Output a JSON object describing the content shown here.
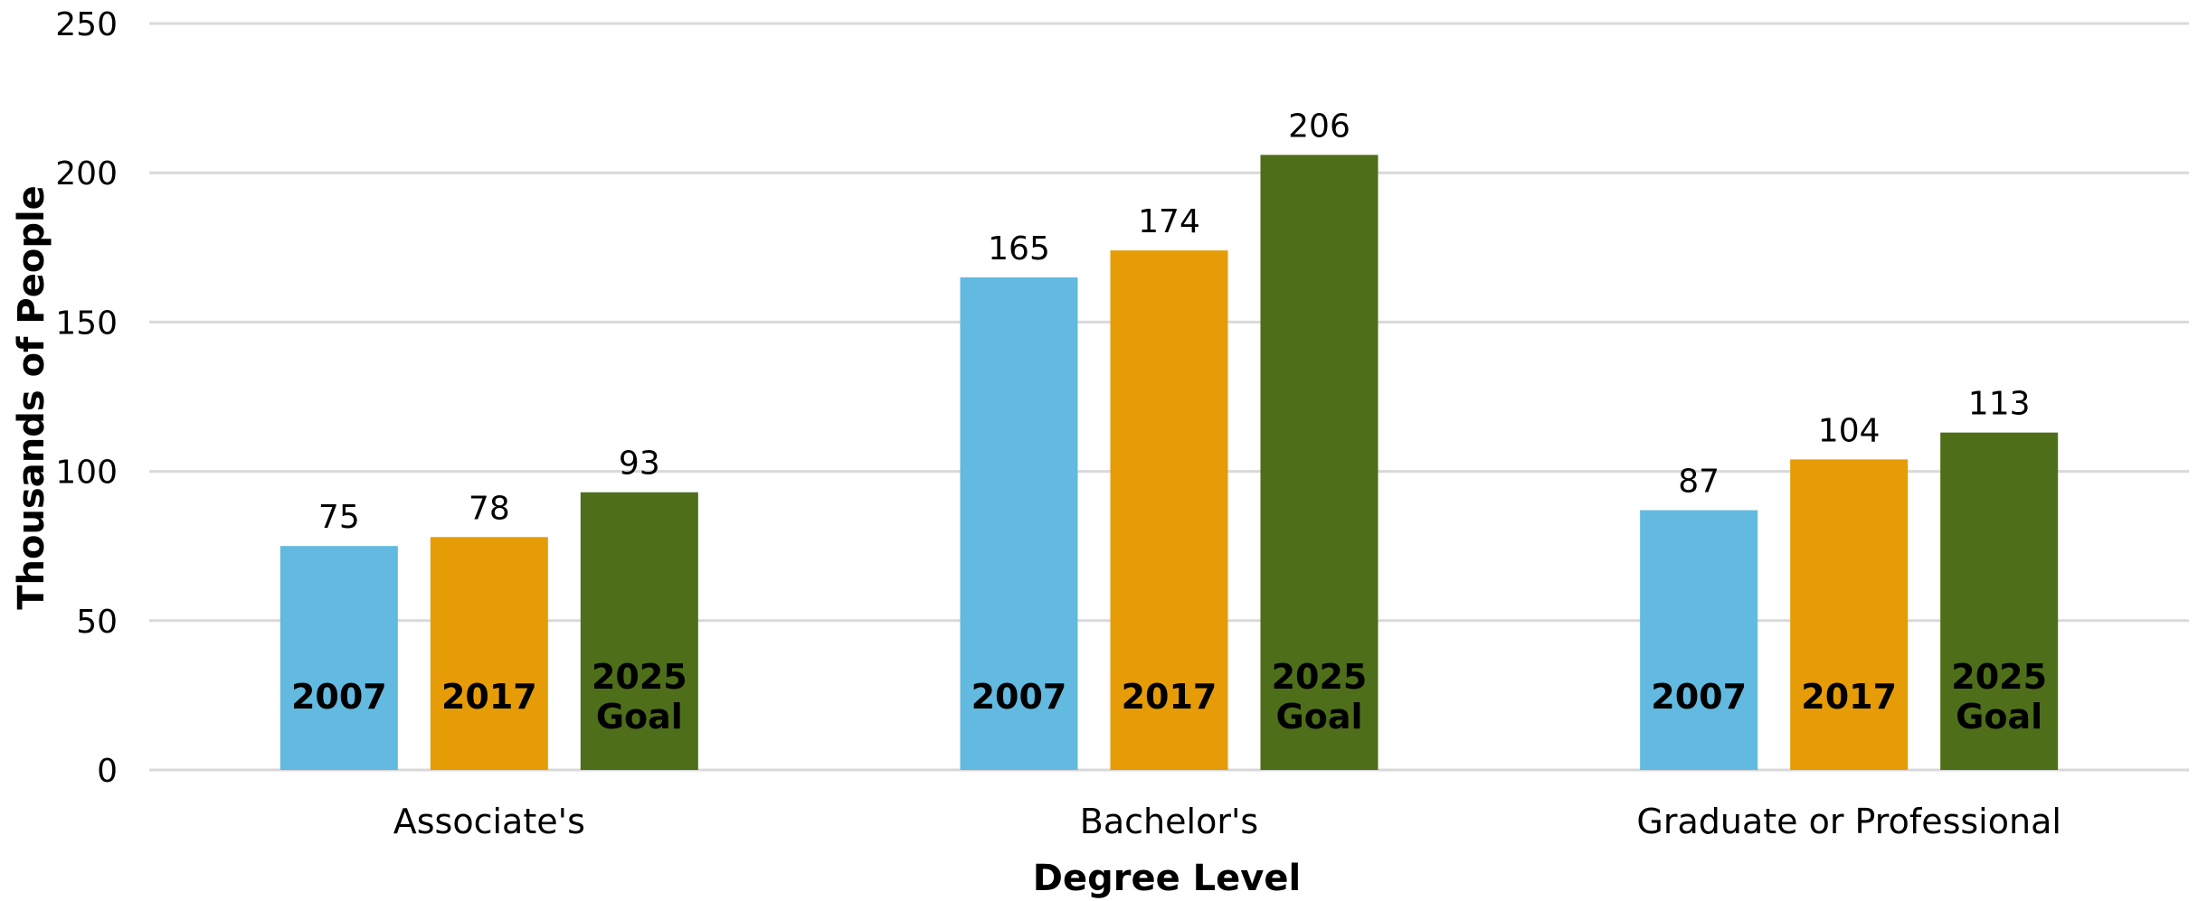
{
  "chart_data": {
    "type": "bar",
    "categories": [
      "Associate's",
      "Bachelor's",
      "Graduate or Professional"
    ],
    "series": [
      {
        "name": "2007",
        "label_lines": [
          "2007"
        ],
        "color": "#62BAE0",
        "values": [
          75,
          165,
          87
        ]
      },
      {
        "name": "2017",
        "label_lines": [
          "2017"
        ],
        "color": "#E69C06",
        "values": [
          78,
          174,
          104
        ]
      },
      {
        "name": "2025 Goal",
        "label_lines": [
          "2025",
          "Goal"
        ],
        "color": "#4E6E1A",
        "values": [
          93,
          206,
          113
        ]
      }
    ],
    "xlabel": "Degree Level",
    "ylabel": "Thousands of People",
    "ylim": [
      0,
      250
    ],
    "yticks": [
      0,
      50,
      100,
      150,
      200,
      250
    ],
    "grid": true,
    "gridline_color": "#D9D9D9"
  }
}
